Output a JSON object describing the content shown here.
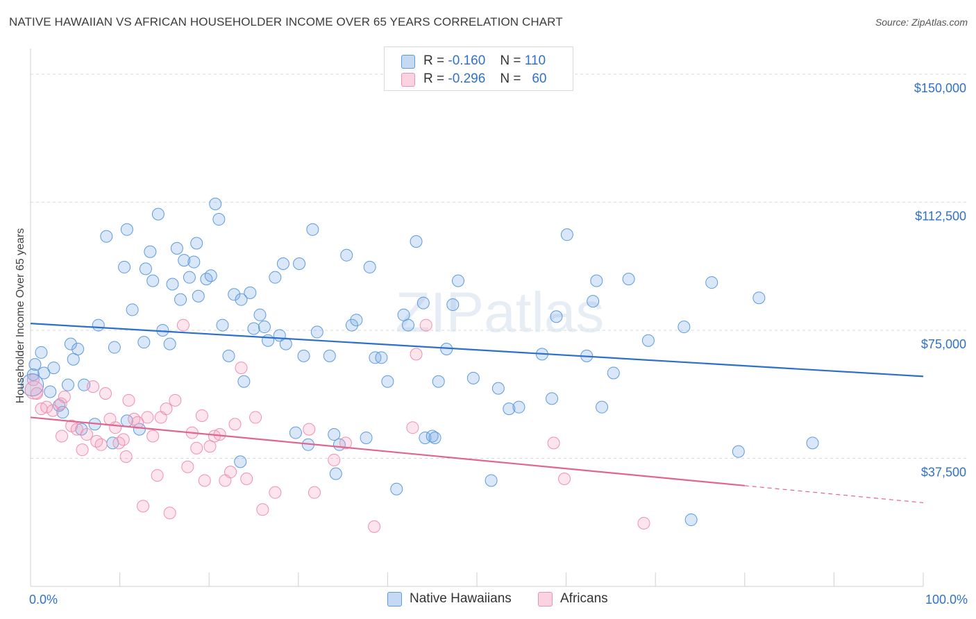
{
  "title": "NATIVE HAWAIIAN VS AFRICAN HOUSEHOLDER INCOME OVER 65 YEARS CORRELATION CHART",
  "source": "Source: ZipAtlas.com",
  "watermark": "ZIPatlas",
  "legend": {
    "rows": [
      {
        "r_label": "R =",
        "r_value": "-0.160",
        "n_label": "N =",
        "n_value": "110"
      },
      {
        "r_label": "R =",
        "r_value": "-0.296",
        "n_label": "N =",
        "n_value": "60"
      }
    ]
  },
  "chart_data": {
    "type": "scatter",
    "title": "NATIVE HAWAIIAN VS AFRICAN HOUSEHOLDER INCOME OVER 65 YEARS CORRELATION CHART",
    "xlabel": "",
    "ylabel": "Householder Income Over 65 years",
    "xlim": [
      0,
      100
    ],
    "ylim": [
      0,
      157500
    ],
    "x_tick_labels": [
      "0.0%",
      "100.0%"
    ],
    "y_ticks": [
      37500,
      75000,
      112500,
      150000
    ],
    "y_tick_labels": [
      "$37,500",
      "$75,000",
      "$112,500",
      "$150,000"
    ],
    "grid": "horizontal dashed",
    "legend_position": "top-center",
    "colors": {
      "native_hawaiians": "#5b9be0",
      "africans": "#f08fb0",
      "trend_blue": "#2c6fcf",
      "trend_pink": "#e06591",
      "tick_label": "#2f72c9"
    },
    "series": [
      {
        "name": "Native Hawaiians",
        "r": -0.16,
        "n": 110,
        "trend": {
          "x0": 0,
          "y0": 77000,
          "x1": 100,
          "y1": 61500
        },
        "points": [
          [
            0.3,
            62000
          ],
          [
            0.5,
            65000
          ],
          [
            1.2,
            68500
          ],
          [
            1.5,
            62500
          ],
          [
            2.2,
            57000
          ],
          [
            2.6,
            64000
          ],
          [
            3.2,
            53000
          ],
          [
            3.6,
            51000
          ],
          [
            4.2,
            59000
          ],
          [
            4.5,
            71000
          ],
          [
            4.8,
            66500
          ],
          [
            5.3,
            69500
          ],
          [
            5.7,
            46000
          ],
          [
            6,
            59000
          ],
          [
            7.2,
            47500
          ],
          [
            7.6,
            76500
          ],
          [
            8.5,
            102500
          ],
          [
            9.2,
            42000
          ],
          [
            9.4,
            70000
          ],
          [
            10.8,
            48500
          ],
          [
            10.5,
            93500
          ],
          [
            10.8,
            104500
          ],
          [
            11.4,
            81000
          ],
          [
            12.2,
            46000
          ],
          [
            12.7,
            71500
          ],
          [
            12.9,
            93000
          ],
          [
            13.4,
            98000
          ],
          [
            13.7,
            89500
          ],
          [
            14.3,
            109000
          ],
          [
            14.8,
            75000
          ],
          [
            15.6,
            71000
          ],
          [
            15.9,
            88500
          ],
          [
            16.4,
            99000
          ],
          [
            16.8,
            84000
          ],
          [
            17.2,
            95500
          ],
          [
            17.8,
            90500
          ],
          [
            18.3,
            95000
          ],
          [
            18.8,
            85000
          ],
          [
            18.6,
            100500
          ],
          [
            19.7,
            90000
          ],
          [
            20.2,
            91000
          ],
          [
            20.7,
            112000
          ],
          [
            21.1,
            107500
          ],
          [
            21.5,
            76500
          ],
          [
            22.2,
            67500
          ],
          [
            22.8,
            85500
          ],
          [
            23.6,
            84000
          ],
          [
            23.9,
            60000
          ],
          [
            23.5,
            36500
          ],
          [
            24.6,
            86000
          ],
          [
            25.0,
            75500
          ],
          [
            25.7,
            79500
          ],
          [
            26.2,
            76000
          ],
          [
            26.6,
            72000
          ],
          [
            27.4,
            90500
          ],
          [
            27.9,
            73500
          ],
          [
            28.3,
            94500
          ],
          [
            28.6,
            71000
          ],
          [
            29.7,
            45000
          ],
          [
            30.1,
            94500
          ],
          [
            30.6,
            67500
          ],
          [
            31.1,
            41500
          ],
          [
            31.6,
            104500
          ],
          [
            32.1,
            74500
          ],
          [
            33.5,
            67500
          ],
          [
            34.0,
            44500
          ],
          [
            34.6,
            41500
          ],
          [
            34.2,
            33000
          ],
          [
            35.4,
            97000
          ],
          [
            36.0,
            76500
          ],
          [
            36.5,
            78000
          ],
          [
            37.6,
            43500
          ],
          [
            38.0,
            93500
          ],
          [
            38.6,
            67000
          ],
          [
            39.3,
            67000
          ],
          [
            40.0,
            60000
          ],
          [
            41.0,
            28500
          ],
          [
            41.8,
            79500
          ],
          [
            42.3,
            76500
          ],
          [
            43.2,
            101000
          ],
          [
            44.0,
            83000
          ],
          [
            44.2,
            43500
          ],
          [
            45.0,
            44000
          ],
          [
            45.3,
            43500
          ],
          [
            45.7,
            60000
          ],
          [
            46.6,
            69500
          ],
          [
            47.3,
            82500
          ],
          [
            47.9,
            89500
          ],
          [
            49.6,
            61000
          ],
          [
            51.6,
            31000
          ],
          [
            52.4,
            58000
          ],
          [
            53.6,
            52000
          ],
          [
            54.7,
            52500
          ],
          [
            57.3,
            68000
          ],
          [
            58.4,
            55000
          ],
          [
            58.9,
            79000
          ],
          [
            60.1,
            103000
          ],
          [
            62.3,
            67500
          ],
          [
            63.0,
            83500
          ],
          [
            63.4,
            89500
          ],
          [
            64.0,
            52500
          ],
          [
            65.3,
            62500
          ],
          [
            67.0,
            90000
          ],
          [
            69.2,
            72000
          ],
          [
            73.2,
            76000
          ],
          [
            76.3,
            89000
          ],
          [
            79.3,
            39500
          ],
          [
            81.6,
            84500
          ],
          [
            87.6,
            42000
          ],
          [
            74.0,
            19500
          ]
        ]
      },
      {
        "name": "Africans",
        "r": -0.296,
        "n": 60,
        "trend": {
          "x0": 0,
          "y0": 49500,
          "x1": 80,
          "y1": 29500
        },
        "trend_dashed_to": {
          "x": 100,
          "y": 24500
        },
        "points": [
          [
            0.3,
            60500
          ],
          [
            0.7,
            56500
          ],
          [
            1.2,
            52000
          ],
          [
            1.8,
            52500
          ],
          [
            2.5,
            51500
          ],
          [
            3.4,
            53500
          ],
          [
            3.8,
            55500
          ],
          [
            4.6,
            47000
          ],
          [
            5.2,
            46000
          ],
          [
            5.8,
            40000
          ],
          [
            6.3,
            44500
          ],
          [
            7.0,
            58500
          ],
          [
            7.4,
            42500
          ],
          [
            7.9,
            41500
          ],
          [
            8.4,
            56500
          ],
          [
            8.9,
            49000
          ],
          [
            9.5,
            46500
          ],
          [
            9.9,
            42000
          ],
          [
            10.4,
            43000
          ],
          [
            10.7,
            38000
          ],
          [
            11.0,
            54500
          ],
          [
            11.6,
            49000
          ],
          [
            12.0,
            48000
          ],
          [
            12.6,
            23500
          ],
          [
            13.1,
            49500
          ],
          [
            13.7,
            44000
          ],
          [
            14.2,
            32500
          ],
          [
            14.6,
            49500
          ],
          [
            15.2,
            52000
          ],
          [
            15.6,
            21500
          ],
          [
            16.2,
            54500
          ],
          [
            17.1,
            76500
          ],
          [
            17.6,
            35000
          ],
          [
            18.1,
            45000
          ],
          [
            18.6,
            40500
          ],
          [
            19.2,
            50000
          ],
          [
            19.5,
            31000
          ],
          [
            20.1,
            41000
          ],
          [
            20.6,
            44000
          ],
          [
            21.2,
            44500
          ],
          [
            21.8,
            31000
          ],
          [
            22.4,
            33500
          ],
          [
            22.9,
            47500
          ],
          [
            23.6,
            64000
          ],
          [
            24.2,
            31500
          ],
          [
            25.2,
            49500
          ],
          [
            26.0,
            22500
          ],
          [
            27.4,
            27500
          ],
          [
            31.2,
            46000
          ],
          [
            31.8,
            27500
          ],
          [
            34.0,
            37000
          ],
          [
            35.3,
            42000
          ],
          [
            38.5,
            17500
          ],
          [
            42.8,
            46500
          ],
          [
            43.2,
            68000
          ],
          [
            44.3,
            76500
          ],
          [
            58.6,
            42000
          ],
          [
            59.8,
            31500
          ],
          [
            68.7,
            18500
          ],
          [
            3.5,
            44000
          ]
        ]
      }
    ]
  },
  "bottom_legend": {
    "items": [
      {
        "label": "Native Hawaiians"
      },
      {
        "label": "Africans"
      }
    ]
  }
}
